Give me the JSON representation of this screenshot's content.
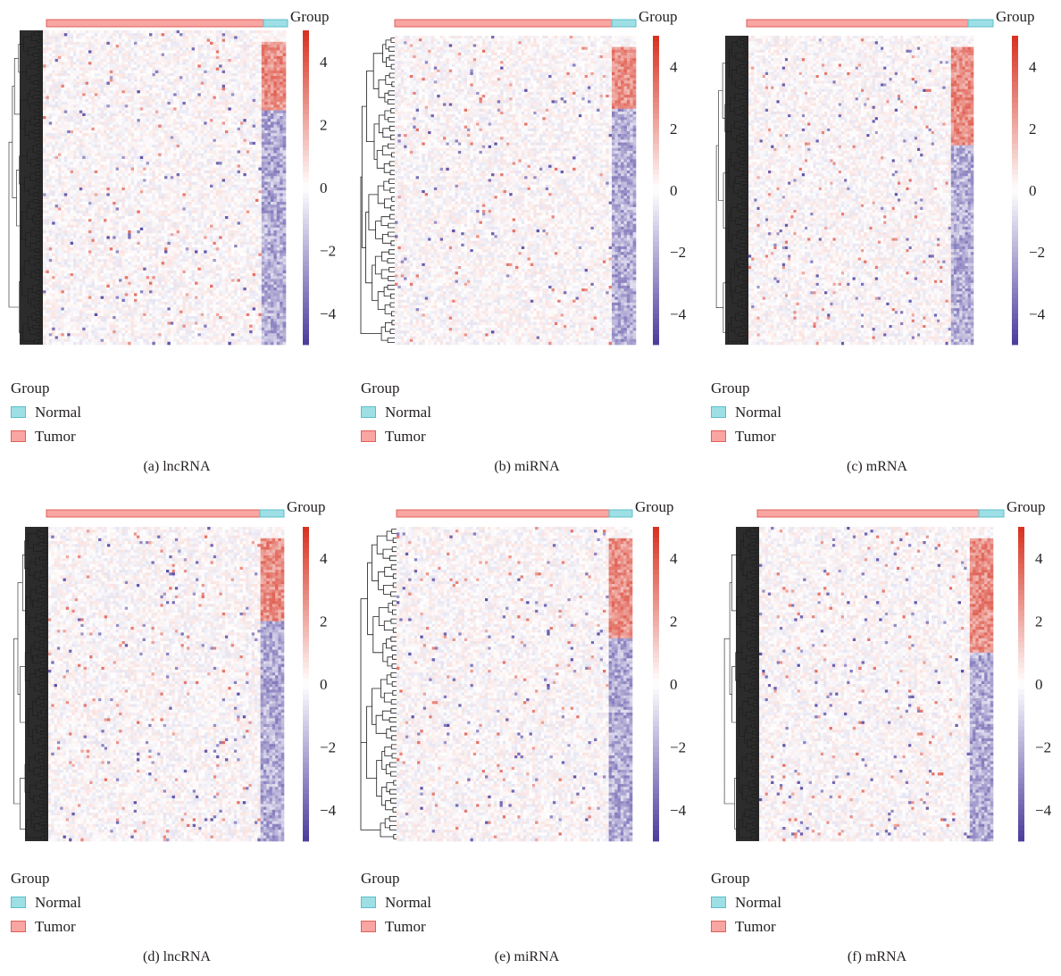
{
  "annotation_title": "Group",
  "legend": {
    "title": "Group",
    "items": [
      {
        "label": "Normal",
        "color": "#9edfe6"
      },
      {
        "label": "Tumor",
        "color": "#f9a5a2"
      }
    ]
  },
  "colors": {
    "high": "#d7301f",
    "mid": "#ffffff",
    "low": "#4a3c9c",
    "normal_bar": "#9edfe6",
    "tumor_bar": "#f9a5a2",
    "dendrogram": "#1a1a1a"
  },
  "chart_data": [
    {
      "type": "heatmap",
      "caption": "(a) lncRNA",
      "colorbar": {
        "min": -5,
        "max": 5,
        "ticks": [
          "4",
          "2",
          "0",
          "−2",
          "−4"
        ],
        "tick_values": [
          4,
          2,
          0,
          -2,
          -4
        ]
      },
      "group_split": 0.9,
      "tumor_up_fraction": 0.22,
      "dense_dendrogram": true
    },
    {
      "type": "heatmap",
      "caption": "(b) miRNA",
      "colorbar": {
        "min": -5,
        "max": 5,
        "ticks": [
          "4",
          "2",
          "0",
          "−2",
          "−4"
        ],
        "tick_values": [
          4,
          2,
          0,
          -2,
          -4
        ]
      },
      "group_split": 0.9,
      "tumor_up_fraction": 0.2,
      "dense_dendrogram": false
    },
    {
      "type": "heatmap",
      "caption": "(c) mRNA",
      "colorbar": {
        "min": -5,
        "max": 5,
        "ticks": [
          "4",
          "2",
          "0",
          "−2",
          "−4"
        ],
        "tick_values": [
          4,
          2,
          0,
          -2,
          -4
        ]
      },
      "group_split": 0.9,
      "tumor_up_fraction": 0.32,
      "dense_dendrogram": true
    },
    {
      "type": "heatmap",
      "caption": "(d) lncRNA",
      "colorbar": {
        "min": -5,
        "max": 5,
        "ticks": [
          "4",
          "2",
          "0",
          "−2",
          "−4"
        ],
        "tick_values": [
          4,
          2,
          0,
          -2,
          -4
        ]
      },
      "group_split": 0.9,
      "tumor_up_fraction": 0.26,
      "dense_dendrogram": true
    },
    {
      "type": "heatmap",
      "caption": "(e) miRNA",
      "colorbar": {
        "min": -5,
        "max": 5,
        "ticks": [
          "4",
          "2",
          "0",
          "−2",
          "−4"
        ],
        "tick_values": [
          4,
          2,
          0,
          -2,
          -4
        ]
      },
      "group_split": 0.9,
      "tumor_up_fraction": 0.32,
      "dense_dendrogram": false
    },
    {
      "type": "heatmap",
      "caption": "(f) mRNA",
      "colorbar": {
        "min": -5,
        "max": 5,
        "ticks": [
          "4",
          "2",
          "0",
          "−2",
          "−4"
        ],
        "tick_values": [
          4,
          2,
          0,
          -2,
          -4
        ]
      },
      "group_split": 0.9,
      "tumor_up_fraction": 0.36,
      "dense_dendrogram": true
    }
  ]
}
